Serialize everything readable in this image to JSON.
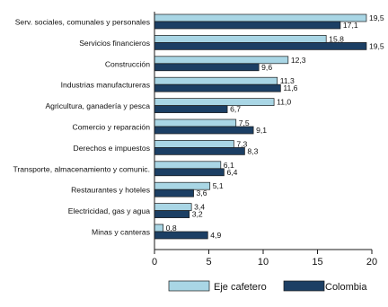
{
  "chart_data": {
    "type": "bar",
    "orientation": "horizontal",
    "categories": [
      "Serv. sociales, comunales y personales",
      "Servicios financieros",
      "Construcción",
      "Industrias manufactureras",
      "Agricultura, ganadería y pesca",
      "Comercio y reparación",
      "Derechos e impuestos",
      "Transporte, almacenamiento y comunic.",
      "Restaurantes y hoteles",
      "Electricidad, gas y agua",
      "Minas y canteras"
    ],
    "series": [
      {
        "name": "Eje cafetero",
        "color": "#a9d6e5",
        "values": [
          19.5,
          15.8,
          12.3,
          11.3,
          11.0,
          7.5,
          7.3,
          6.1,
          5.1,
          3.4,
          0.8
        ],
        "labels": [
          "19,5",
          "15,8",
          "12,3",
          "11,3",
          "11,0",
          "7,5",
          "7,3",
          "6,1",
          "5,1",
          "3,4",
          "0,8"
        ]
      },
      {
        "name": "Colombia",
        "color": "#1c3f64",
        "values": [
          17.1,
          19.5,
          9.6,
          11.6,
          6.7,
          9.1,
          8.3,
          6.4,
          3.6,
          3.2,
          4.9
        ],
        "labels": [
          "17,1",
          "19,5",
          "9,6",
          "11,6",
          "6,7",
          "9,1",
          "8,3",
          "6,4",
          "3,6",
          "3,2",
          "4,9"
        ]
      }
    ],
    "xlim": [
      0,
      20
    ],
    "xticks": [
      0,
      5,
      10,
      15,
      20
    ],
    "xtick_labels": [
      "0",
      "5",
      "10",
      "15",
      "20"
    ],
    "grid": false,
    "legend_position": "bottom"
  }
}
